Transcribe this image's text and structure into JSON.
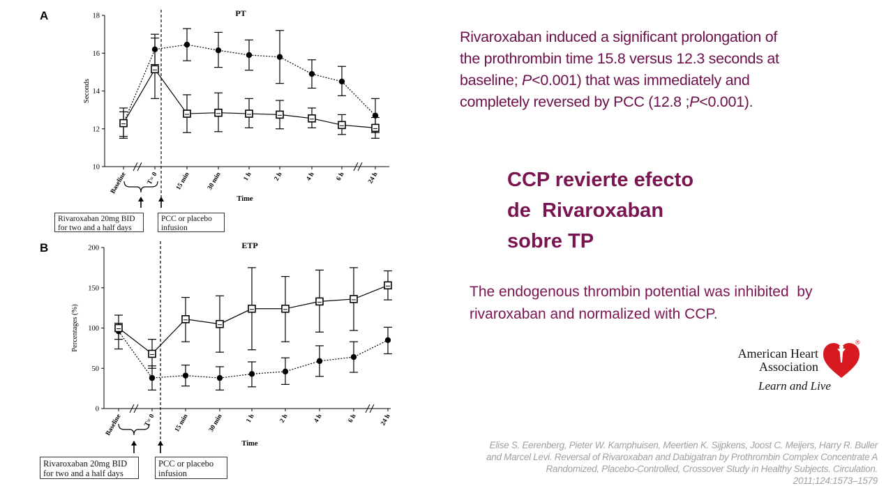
{
  "chart_data": [
    {
      "panel": "A",
      "type": "line",
      "title": "PT",
      "xlabel": "Time",
      "ylabel": "Seconds",
      "ylim": [
        10,
        18
      ],
      "yticks": [
        10,
        12,
        14,
        16,
        18
      ],
      "categories": [
        "Baseline",
        "T= 0",
        "15 min",
        "30 min",
        "1 h",
        "2 h",
        "4 h",
        "6 h",
        "24 h"
      ],
      "grid": false,
      "legend_position": "bottom-right",
      "series": [
        {
          "name": "placebo",
          "marker": "filled-circle",
          "line": "dotted",
          "values": [
            12.3,
            16.2,
            16.45,
            16.15,
            15.9,
            15.8,
            14.9,
            14.5,
            12.7
          ],
          "err_low": [
            11.6,
            15.4,
            15.6,
            15.25,
            15.1,
            14.4,
            14.15,
            13.75,
            11.8
          ],
          "err_high": [
            12.9,
            17.0,
            17.3,
            17.1,
            16.7,
            17.2,
            15.65,
            15.3,
            13.6
          ]
        },
        {
          "name": "PCC",
          "marker": "open-square",
          "line": "solid",
          "values": [
            12.3,
            15.15,
            12.8,
            12.85,
            12.8,
            12.75,
            12.55,
            12.2,
            12.05
          ],
          "err_low": [
            11.5,
            13.6,
            11.8,
            11.85,
            12.05,
            12.0,
            12.05,
            11.7,
            11.5
          ],
          "err_high": [
            13.1,
            16.8,
            13.8,
            13.9,
            13.6,
            13.5,
            13.1,
            12.75,
            12.6
          ]
        }
      ]
    },
    {
      "panel": "B",
      "type": "line",
      "title": "ETP",
      "xlabel": "Time",
      "ylabel": "Percentages (%)",
      "ylim": [
        0,
        200
      ],
      "yticks": [
        0,
        50,
        100,
        150,
        200
      ],
      "categories": [
        "Baseline",
        "T= 0",
        "15 min",
        "30 min",
        "1 h",
        "2 h",
        "4 h",
        "6 h",
        "24 h"
      ],
      "grid": false,
      "legend_position": "bottom-right",
      "series": [
        {
          "name": "placebo",
          "marker": "filled-circle",
          "line": "dotted",
          "values": [
            96,
            38,
            41,
            38,
            43,
            46,
            59,
            64,
            85
          ],
          "err_low": [
            86,
            23,
            28,
            23,
            27,
            30,
            40,
            45,
            68
          ],
          "err_high": [
            106,
            53,
            54,
            52,
            58,
            63,
            78,
            83,
            101
          ]
        },
        {
          "name": "PCC",
          "marker": "open-square",
          "line": "solid",
          "values": [
            100,
            68,
            111,
            105,
            124,
            124,
            133,
            136,
            153
          ],
          "err_low": [
            74,
            50,
            83,
            70,
            73,
            83,
            95,
            97,
            135
          ],
          "err_high": [
            116,
            86,
            138,
            140,
            175,
            164,
            172,
            175,
            171
          ]
        }
      ]
    }
  ],
  "notes": {
    "rivaroxaban": "Rivaroxaban 20mg BID for two and a half days",
    "pcc": "PCC or placebo infusion"
  },
  "text": {
    "pt_finding": "Rivaroxaban induced a significant prolongation of the prothrombin time 15.8 versus 12.3 seconds at baseline; P<0.001) that was immediately and completely reversed by PCC (12.8 ;P<0.001).",
    "heading_lines": [
      "CCP revierte efecto",
      "de  Rivaroxaban",
      "sobre TP"
    ],
    "etp_finding": "The endogenous thrombin potential was inhibited  by rivaroxaban and normalized with CCP.",
    "reference": "Elise S. Eerenberg, Pieter W. Kamphuisen, Meertien K. Sijpkens, Joost C. Meijers, Harry R. Buller and Marcel Levi. Reversal of Rivaroxaban and Dabigatran by Prothrombin Complex Concentrate A Randomized, Placebo-Controlled, Crossover Study in Healthy Subjects. Circulation. 2011;124:1573–1579"
  },
  "logo": {
    "name_lines": [
      "American Heart",
      "Association"
    ],
    "tagline": "Learn and Live",
    "registered": "®",
    "color": "#d71920"
  }
}
